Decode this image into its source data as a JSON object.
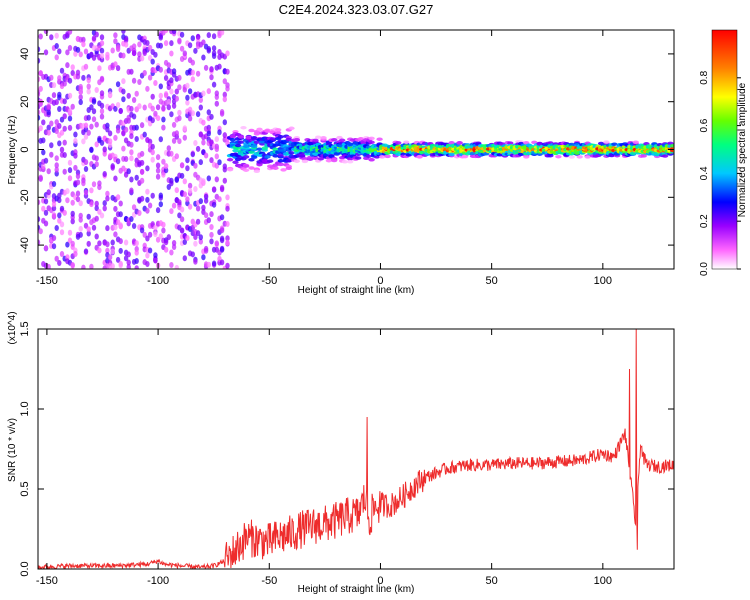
{
  "figure_title": "C2E4.2024.323.03.07.G27",
  "colors": {
    "line": "#ee2c2c",
    "axes": "#000000",
    "colormap": [
      "#ffffff",
      "#ff00ff",
      "#8000ff",
      "#0000ff",
      "#00c8ff",
      "#00ff80",
      "#80ff00",
      "#ffff00",
      "#ff8000",
      "#ff0000"
    ]
  },
  "chart_data": [
    {
      "type": "heatmap",
      "xlabel": "Height of straight line (km)",
      "ylabel": "Frequency (Hz)",
      "colorbar_label": "Normalized spectral amplitude",
      "xlim": [
        -154,
        132
      ],
      "ylim": [
        -50,
        50
      ],
      "x_ticks": [
        -150,
        -100,
        -50,
        0,
        50,
        100
      ],
      "y_ticks": [
        -40,
        -20,
        0,
        20,
        40
      ],
      "colorbar_range": [
        0,
        1
      ],
      "colorbar_ticks": [
        0.0,
        0.2,
        0.4,
        0.6,
        0.8
      ],
      "colorbar_tick_labels": [
        "0.0",
        "0.2",
        "0.4",
        "0.6",
        "0.8"
      ],
      "regions": [
        {
          "x_range": [
            -154,
            -68
          ],
          "freq_spread": 50,
          "amplitude": 0.18,
          "description": "broadband low-amplitude noise"
        },
        {
          "x_range": [
            -78,
            -40
          ],
          "freq_spread": 8,
          "amplitude": 0.45
        },
        {
          "x_range": [
            -40,
            0
          ],
          "freq_spread": 5,
          "amplitude": 0.55
        },
        {
          "x_range": [
            0,
            132
          ],
          "freq_spread": 3,
          "amplitude": 0.9
        }
      ]
    },
    {
      "type": "line",
      "xlabel": "Height of straight line (km)",
      "ylabel": "SNR (10 * v/v)",
      "y_multiplier": "(x10^4)",
      "xlim": [
        -154,
        132
      ],
      "ylim": [
        0,
        1.5
      ],
      "x_ticks": [
        -150,
        -100,
        -50,
        0,
        50,
        100
      ],
      "y_ticks": [
        0.0,
        0.5,
        1.0,
        1.5
      ],
      "y_tick_labels": [
        "0.0",
        "0.5",
        "1.0",
        "1.5"
      ],
      "series": [
        {
          "x": [
            -154,
            -140,
            -120,
            -105,
            -100,
            -97,
            -90,
            -80,
            -75,
            -70,
            -65,
            -60,
            -55,
            -50,
            -45,
            -40,
            -35,
            -30,
            -25,
            -20,
            -15,
            -10,
            -7,
            -5,
            -3,
            0,
            5,
            10,
            15,
            20,
            25,
            30,
            40,
            50,
            60,
            70,
            80,
            90,
            100,
            105,
            110,
            113,
            115,
            116,
            117,
            118,
            120,
            125,
            132
          ],
          "y": [
            0.01,
            0.02,
            0.02,
            0.03,
            0.05,
            0.03,
            0.02,
            0.01,
            0.02,
            0.05,
            0.12,
            0.2,
            0.18,
            0.17,
            0.2,
            0.22,
            0.25,
            0.27,
            0.28,
            0.3,
            0.33,
            0.34,
            0.45,
            0.3,
            0.38,
            0.4,
            0.4,
            0.45,
            0.52,
            0.57,
            0.6,
            0.63,
            0.65,
            0.65,
            0.66,
            0.66,
            0.67,
            0.68,
            0.72,
            0.7,
            0.85,
            0.5,
            0.25,
            0.55,
            0.8,
            0.7,
            0.65,
            0.64,
            0.65
          ],
          "peaks": [
            {
              "x": -6,
              "y": 0.95
            },
            {
              "x": 112,
              "y": 1.25
            },
            {
              "x": 115,
              "y": 1.5
            },
            {
              "x": 115.5,
              "y": 0.12
            }
          ]
        }
      ]
    }
  ]
}
